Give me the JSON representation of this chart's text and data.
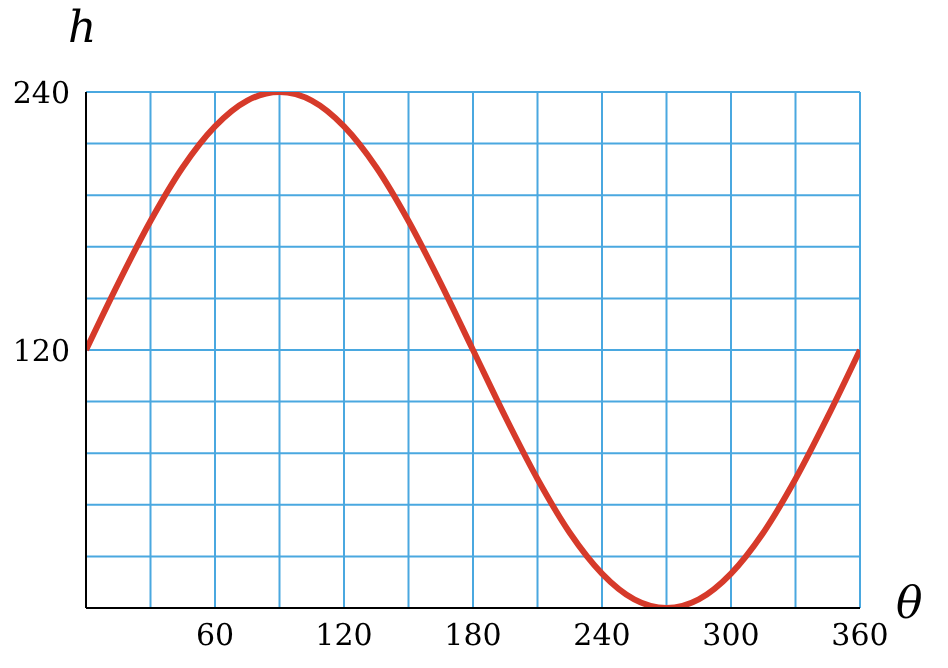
{
  "chart_data": {
    "type": "line",
    "xlabel": "θ",
    "ylabel": "h",
    "x": [
      0,
      15,
      30,
      45,
      60,
      75,
      90,
      105,
      120,
      135,
      150,
      165,
      180,
      195,
      210,
      225,
      240,
      255,
      270,
      285,
      300,
      315,
      330,
      345,
      360
    ],
    "series": [
      {
        "color": "#d63a2a",
        "values": [
          120,
          151,
          180,
          205,
          224,
          236,
          240,
          236,
          224,
          205,
          180,
          151,
          120,
          89,
          60,
          35,
          16,
          4,
          0,
          4,
          16,
          35,
          60,
          89,
          120
        ]
      }
    ],
    "xlim": [
      0,
      360
    ],
    "ylim": [
      0,
      240
    ],
    "xticks": [
      {
        "value": 0,
        "label": null
      },
      {
        "value": 30,
        "label": null
      },
      60,
      {
        "value": 90,
        "label": null
      },
      120,
      {
        "value": 150,
        "label": null
      },
      180,
      {
        "value": 210,
        "label": null
      },
      240,
      {
        "value": 270,
        "label": null
      },
      300,
      {
        "value": 330,
        "label": null
      },
      360
    ],
    "yticks": [
      {
        "value": 0,
        "label": null
      },
      {
        "value": 24,
        "label": null
      },
      {
        "value": 48,
        "label": null
      },
      {
        "value": 72,
        "label": null
      },
      {
        "value": 96,
        "label": null
      },
      120,
      {
        "value": 144,
        "label": null
      },
      {
        "value": 168,
        "label": null
      },
      {
        "value": 192,
        "label": null
      },
      {
        "value": 216,
        "label": null
      },
      240
    ],
    "grid": true,
    "marker": "none",
    "line_style": "solid"
  }
}
